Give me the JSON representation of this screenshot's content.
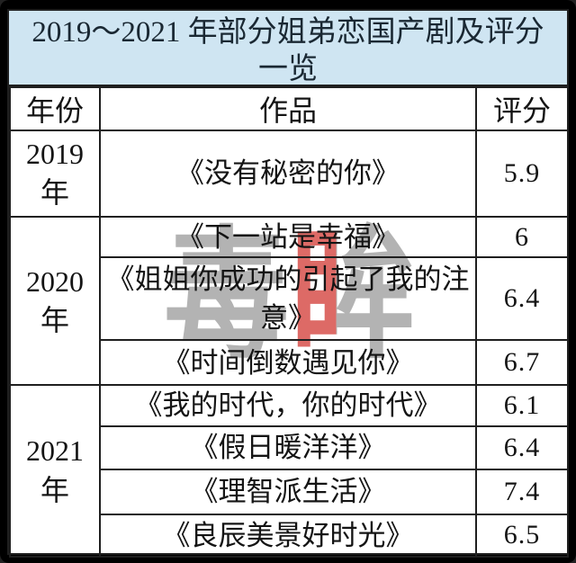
{
  "title": "2019～2021 年部分姐弟恋国产剧及评分一览",
  "watermark": {
    "name": "duyan-logo-watermark",
    "left_char": "毒",
    "right_char": "眸"
  },
  "colors": {
    "frame": "#000000",
    "title_bg": "#cfe5f2",
    "title_text": "#1a2833",
    "text": "#141414",
    "border": "#1f1f1f",
    "watermark_gray": "#b3b3b3",
    "watermark_red": "#dd6a66"
  },
  "table": {
    "headers": [
      "年份",
      "作品",
      "评分"
    ],
    "groups": [
      {
        "year": "2019年",
        "rows": [
          {
            "work": "《没有秘密的你》",
            "rating": "5.9"
          }
        ]
      },
      {
        "year": "2020年",
        "rows": [
          {
            "work": "《下一站是幸福》",
            "rating": "6"
          },
          {
            "work": "《姐姐你成功的引起了我的注意》",
            "rating": "6.4"
          },
          {
            "work": "《时间倒数遇见你》",
            "rating": "6.7"
          }
        ]
      },
      {
        "year": "2021年",
        "rows": [
          {
            "work": "《我的时代，你的时代》",
            "rating": "6.1"
          },
          {
            "work": "《假日暖洋洋》",
            "rating": "6.4"
          },
          {
            "work": "《理智派生活》",
            "rating": "7.4"
          },
          {
            "work": "《良辰美景好时光》",
            "rating": "6.5"
          }
        ]
      }
    ]
  },
  "chart_data": {
    "type": "table",
    "title": "2019～2021 年部分姐弟恋国产剧及评分一览",
    "columns": [
      "年份",
      "作品",
      "评分"
    ],
    "rows": [
      [
        "2019年",
        "《没有秘密的你》",
        5.9
      ],
      [
        "2020年",
        "《下一站是幸福》",
        6
      ],
      [
        "2020年",
        "《姐姐你成功的引起了我的注意》",
        6.4
      ],
      [
        "2020年",
        "《时间倒数遇见你》",
        6.7
      ],
      [
        "2021年",
        "《我的时代，你的时代》",
        6.1
      ],
      [
        "2021年",
        "《假日暖洋洋》",
        6.4
      ],
      [
        "2021年",
        "《理智派生活》",
        7.4
      ],
      [
        "2021年",
        "《良辰美景好时光》",
        6.5
      ]
    ]
  }
}
